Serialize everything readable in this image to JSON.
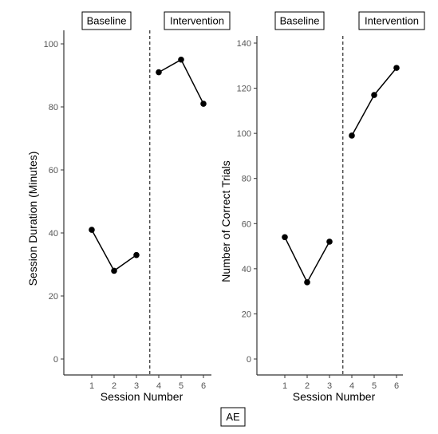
{
  "caption": "AE",
  "chart_data": [
    {
      "type": "line",
      "xlabel": "Session Number",
      "ylabel": "Session Duration (Minutes)",
      "ylim": [
        0,
        100
      ],
      "yticks": [
        0,
        20,
        40,
        60,
        80,
        100
      ],
      "xticks": [
        1,
        2,
        3,
        4,
        5,
        6
      ],
      "phases": [
        {
          "label": "Baseline",
          "x": [
            1,
            2,
            3
          ],
          "y": [
            41,
            28,
            33
          ]
        },
        {
          "label": "Intervention",
          "x": [
            4,
            5,
            6
          ],
          "y": [
            91,
            95,
            81
          ]
        }
      ],
      "phase_change_x": 3.6,
      "grid": false
    },
    {
      "type": "line",
      "xlabel": "Session Number",
      "ylabel": "Number of Correct Trials",
      "ylim": [
        0,
        140
      ],
      "yticks": [
        0,
        20,
        40,
        60,
        80,
        100,
        120,
        140
      ],
      "xticks": [
        1,
        2,
        3,
        4,
        5,
        6
      ],
      "phases": [
        {
          "label": "Baseline",
          "x": [
            1,
            2,
            3
          ],
          "y": [
            54,
            34,
            52
          ]
        },
        {
          "label": "Intervention",
          "x": [
            4,
            5,
            6
          ],
          "y": [
            99,
            117,
            129
          ]
        }
      ],
      "phase_change_x": 3.6,
      "grid": false
    }
  ]
}
